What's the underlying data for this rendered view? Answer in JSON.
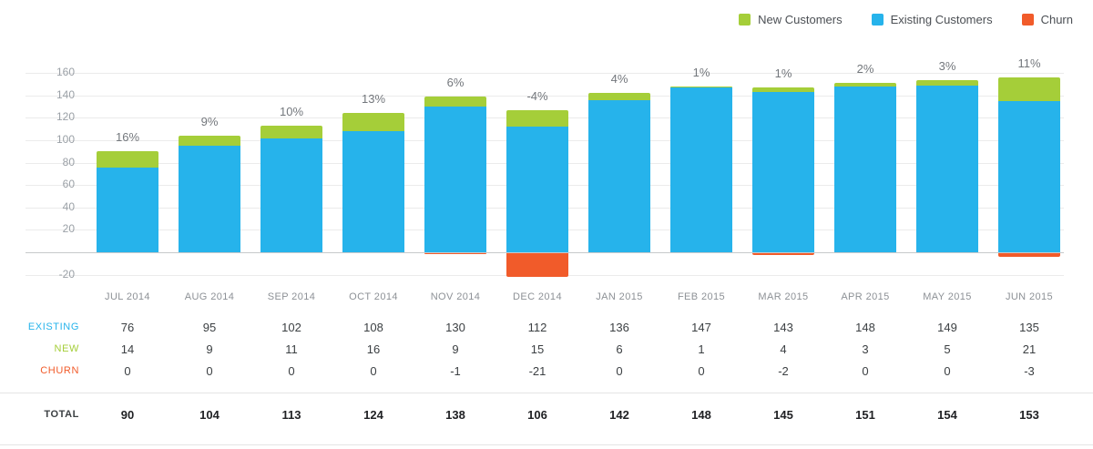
{
  "legend": [
    {
      "label": "New Customers",
      "color": "#a5ce39"
    },
    {
      "label": "Existing Customers",
      "color": "#26b3eb"
    },
    {
      "label": "Churn",
      "color": "#f15b2a"
    }
  ],
  "chart_data": {
    "type": "bar",
    "stacked": true,
    "title": "",
    "xlabel": "",
    "ylabel": "",
    "grid": true,
    "legend_position": "top-right",
    "ylim": [
      -25,
      170
    ],
    "y_ticks": [
      160,
      140,
      120,
      100,
      80,
      60,
      40,
      20,
      -20
    ],
    "categories": [
      "JUL 2014",
      "AUG 2014",
      "SEP 2014",
      "OCT 2014",
      "NOV 2014",
      "DEC 2014",
      "JAN 2015",
      "FEB 2015",
      "MAR 2015",
      "APR 2015",
      "MAY 2015",
      "JUN 2015"
    ],
    "series": [
      {
        "name": "Existing Customers",
        "key": "existing",
        "color": "#26b3eb",
        "values": [
          76,
          95,
          102,
          108,
          130,
          112,
          136,
          147,
          143,
          148,
          149,
          135
        ]
      },
      {
        "name": "New Customers",
        "key": "new",
        "color": "#a5ce39",
        "values": [
          14,
          9,
          11,
          16,
          9,
          15,
          6,
          1,
          4,
          3,
          5,
          21
        ]
      },
      {
        "name": "Churn",
        "key": "churn",
        "color": "#f15b2a",
        "values": [
          0,
          0,
          0,
          0,
          -1,
          -21,
          0,
          0,
          -2,
          0,
          0,
          -3
        ]
      }
    ],
    "growth_labels": [
      "16%",
      "9%",
      "10%",
      "13%",
      "6%",
      "-4%",
      "4%",
      "1%",
      "1%",
      "2%",
      "3%",
      "11%"
    ]
  },
  "table": {
    "rows": [
      {
        "label": "EXISTING",
        "color": "#26b3eb",
        "values": [
          76,
          95,
          102,
          108,
          130,
          112,
          136,
          147,
          143,
          148,
          149,
          135
        ]
      },
      {
        "label": "NEW",
        "color": "#a5ce39",
        "values": [
          14,
          9,
          11,
          16,
          9,
          15,
          6,
          1,
          4,
          3,
          5,
          21
        ]
      },
      {
        "label": "CHURN",
        "color": "#f15b2a",
        "values": [
          0,
          0,
          0,
          0,
          -1,
          -21,
          0,
          0,
          -2,
          0,
          0,
          -3
        ]
      }
    ],
    "total": {
      "label": "TOTAL",
      "values": [
        90,
        104,
        113,
        124,
        138,
        106,
        142,
        148,
        145,
        151,
        154,
        153
      ]
    }
  }
}
